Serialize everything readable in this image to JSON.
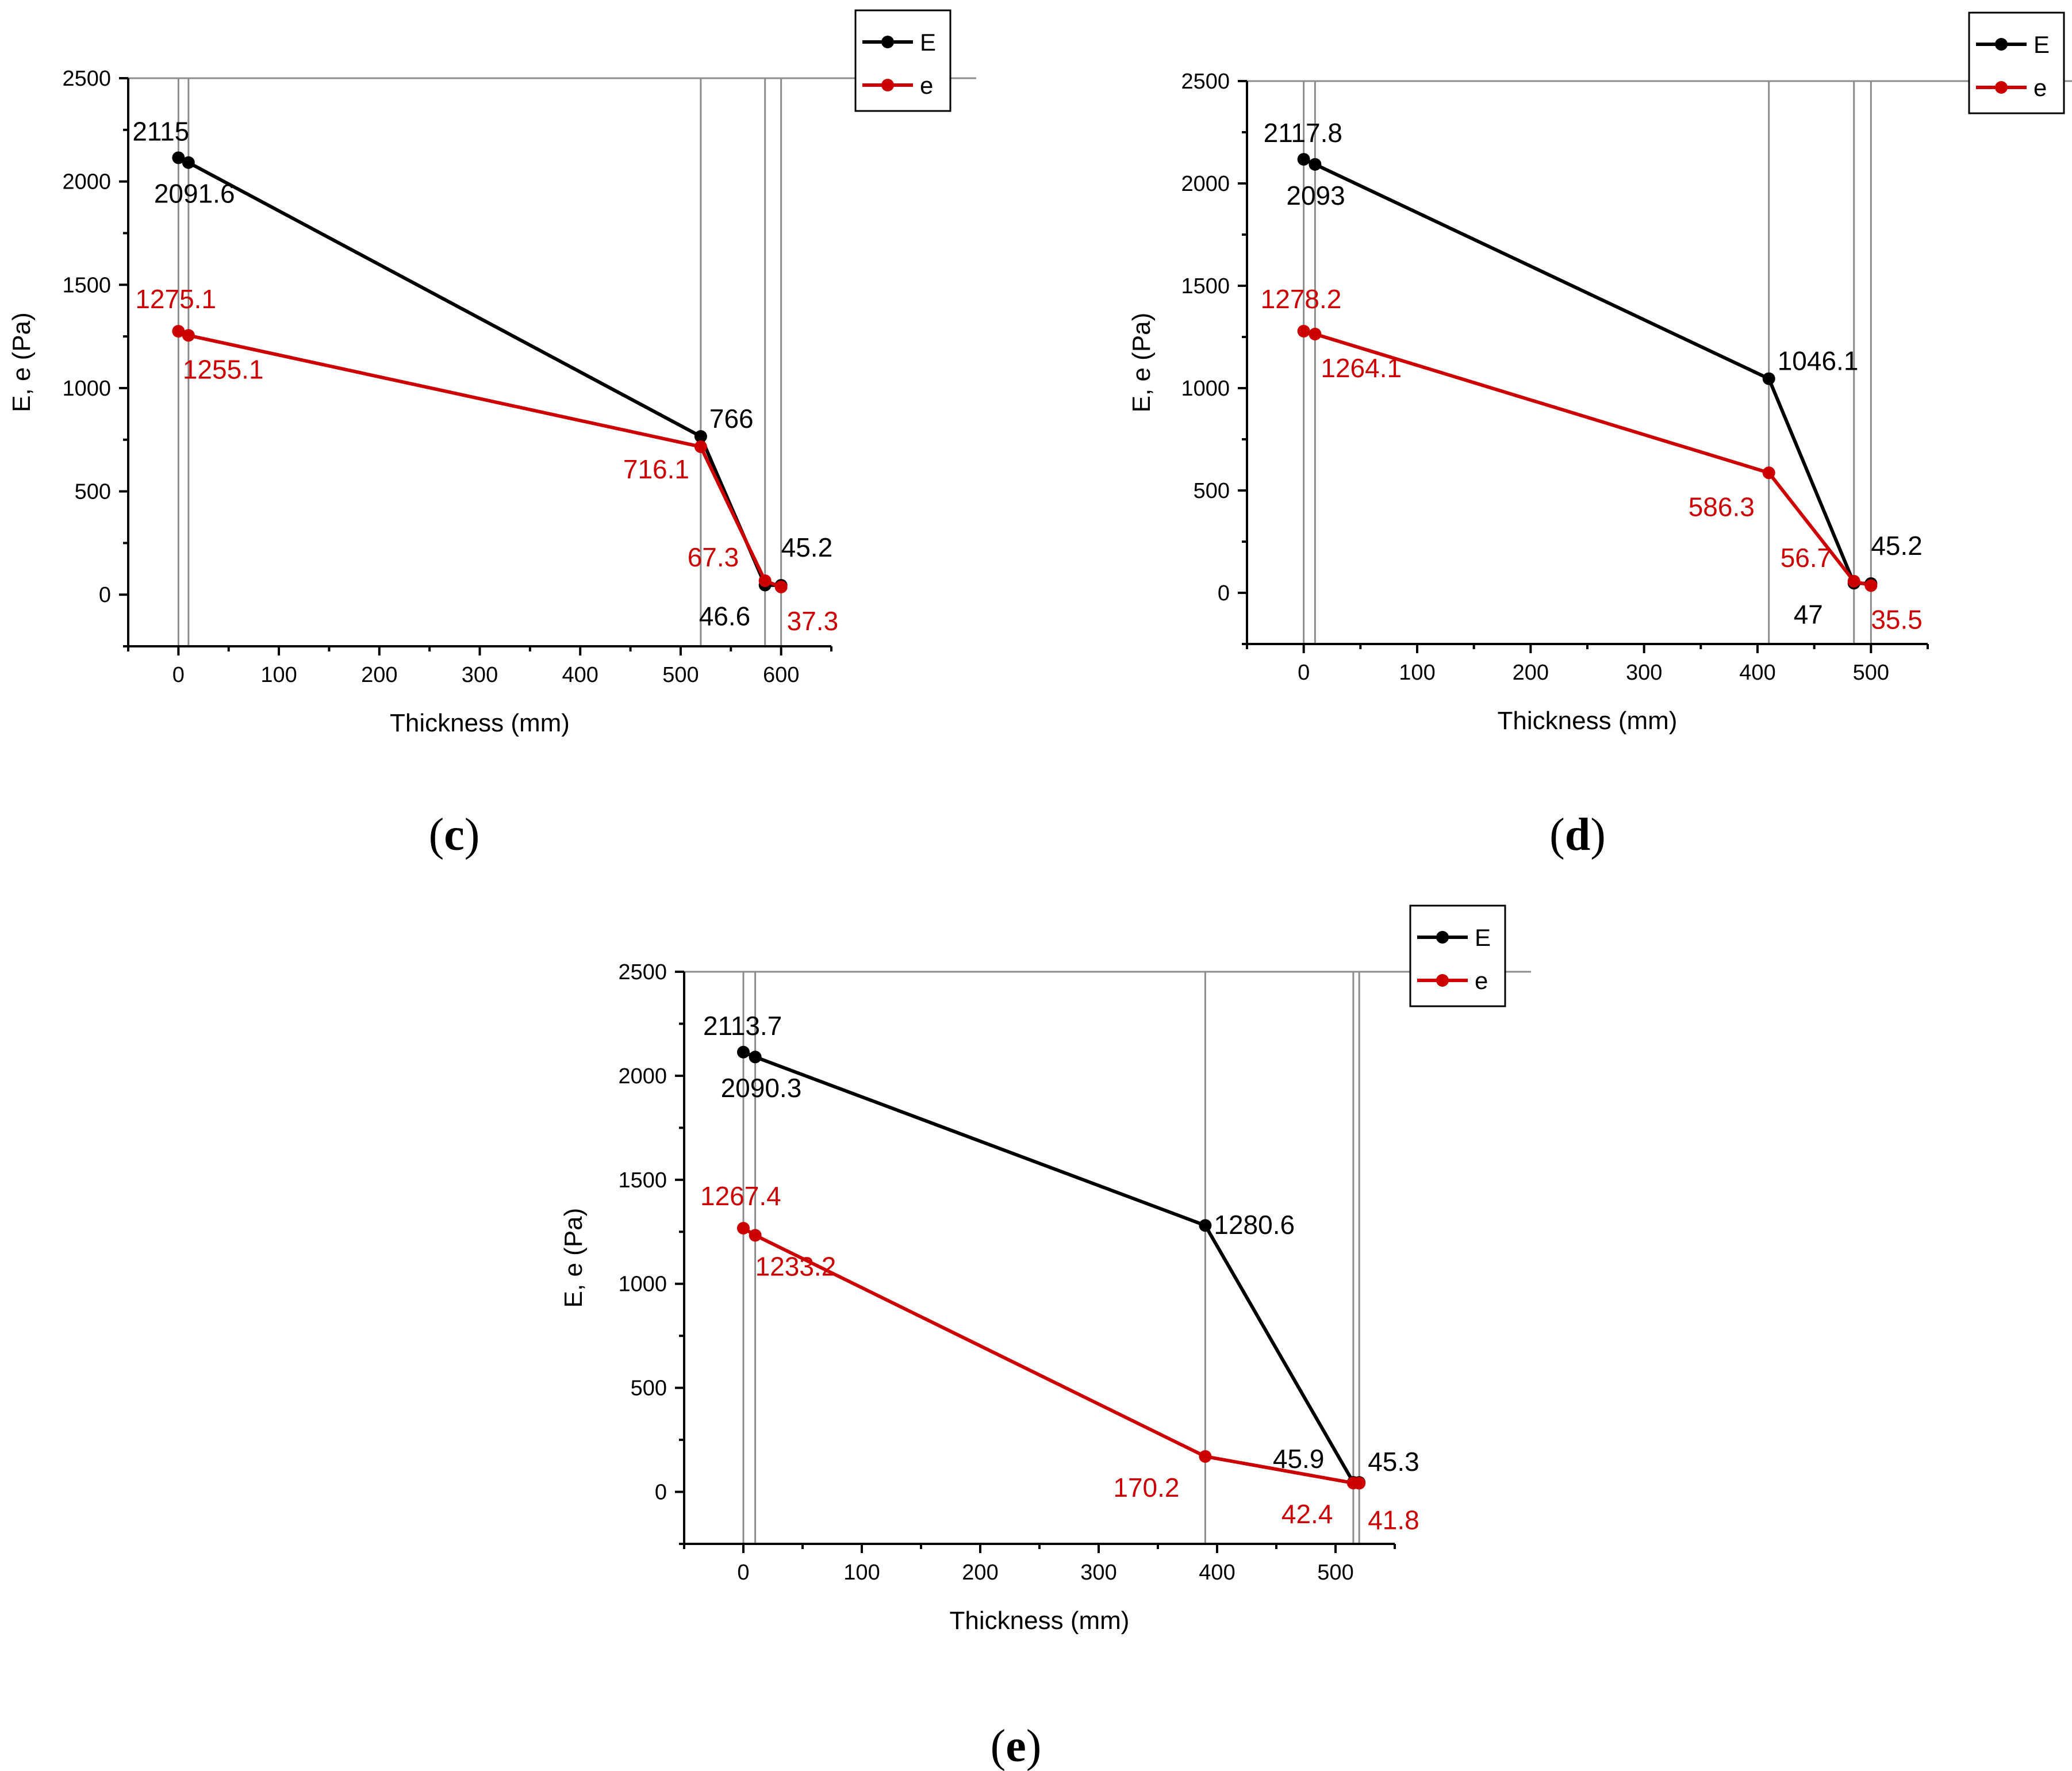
{
  "figure": {
    "background": "#ffffff"
  },
  "chart_data": [
    {
      "type": "line",
      "panel": "(c)",
      "panel_letter": "c",
      "xlabel": "Thickness (mm)",
      "ylabel": "E, e (Pa)",
      "xlim": [
        -50,
        650
      ],
      "ylim": [
        -250,
        2500
      ],
      "xticks": [
        0,
        100,
        200,
        300,
        400,
        500,
        600
      ],
      "yticks": [
        0,
        500,
        1000,
        1500,
        2000,
        2500
      ],
      "vlines": [
        0,
        10,
        520,
        584,
        600
      ],
      "legend": {
        "position": "top-right-outside",
        "entries": [
          "E",
          "e"
        ]
      },
      "series": [
        {
          "name": "E",
          "color": "#000000",
          "x": [
            0,
            10,
            520,
            584,
            600
          ],
          "y": [
            2115,
            2091.6,
            766,
            46.6,
            45.2
          ],
          "labels": [
            "2115",
            "2091.6",
            "766",
            "46.6",
            "45.2"
          ]
        },
        {
          "name": "e",
          "color": "#cc0000",
          "x": [
            0,
            10,
            520,
            584,
            600
          ],
          "y": [
            1275.1,
            1255.1,
            716.1,
            67.3,
            37.3
          ],
          "labels": [
            "1275.1",
            "1255.1",
            "716.1",
            "67.3",
            "37.3"
          ]
        }
      ]
    },
    {
      "type": "line",
      "panel": "(d)",
      "panel_letter": "d",
      "xlabel": "Thickness (mm)",
      "ylabel": "E, e (Pa)",
      "xlim": [
        -50,
        550
      ],
      "ylim": [
        -250,
        2500
      ],
      "xticks": [
        0,
        100,
        200,
        300,
        400,
        500
      ],
      "yticks": [
        0,
        500,
        1000,
        1500,
        2000,
        2500
      ],
      "vlines": [
        0,
        10,
        410,
        485,
        500
      ],
      "legend": {
        "position": "top-right-outside",
        "entries": [
          "E",
          "e"
        ]
      },
      "series": [
        {
          "name": "E",
          "color": "#000000",
          "x": [
            0,
            10,
            410,
            485,
            500
          ],
          "y": [
            2117.8,
            2093,
            1046.1,
            47,
            45.2
          ],
          "labels": [
            "2117.8",
            "2093",
            "1046.1",
            "47",
            "45.2"
          ]
        },
        {
          "name": "e",
          "color": "#cc0000",
          "x": [
            0,
            10,
            410,
            485,
            500
          ],
          "y": [
            1278.2,
            1264.1,
            586.3,
            56.7,
            35.5
          ],
          "labels": [
            "1278.2",
            "1264.1",
            "586.3",
            "56.7",
            "35.5"
          ]
        }
      ]
    },
    {
      "type": "line",
      "panel": "(e)",
      "panel_letter": "e",
      "xlabel": "Thickness (mm)",
      "ylabel": "E, e (Pa)",
      "xlim": [
        -50,
        550
      ],
      "ylim": [
        -250,
        2500
      ],
      "xticks": [
        0,
        100,
        200,
        300,
        400,
        500
      ],
      "yticks": [
        0,
        500,
        1000,
        1500,
        2000,
        2500
      ],
      "vlines": [
        0,
        10,
        390,
        515,
        520
      ],
      "legend": {
        "position": "top-right-outside",
        "entries": [
          "E",
          "e"
        ]
      },
      "series": [
        {
          "name": "E",
          "color": "#000000",
          "x": [
            0,
            10,
            390,
            515,
            520
          ],
          "y": [
            2113.7,
            2090.3,
            1280.6,
            45.9,
            45.3
          ],
          "labels": [
            "2113.7",
            "2090.3",
            "1280.6",
            "45.9",
            "45.3"
          ]
        },
        {
          "name": "e",
          "color": "#cc0000",
          "x": [
            0,
            10,
            390,
            515,
            520
          ],
          "y": [
            1267.4,
            1233.2,
            170.2,
            42.4,
            41.8
          ],
          "labels": [
            "1267.4",
            "1233.2",
            "170.2",
            "42.4",
            "41.8"
          ]
        }
      ]
    }
  ]
}
